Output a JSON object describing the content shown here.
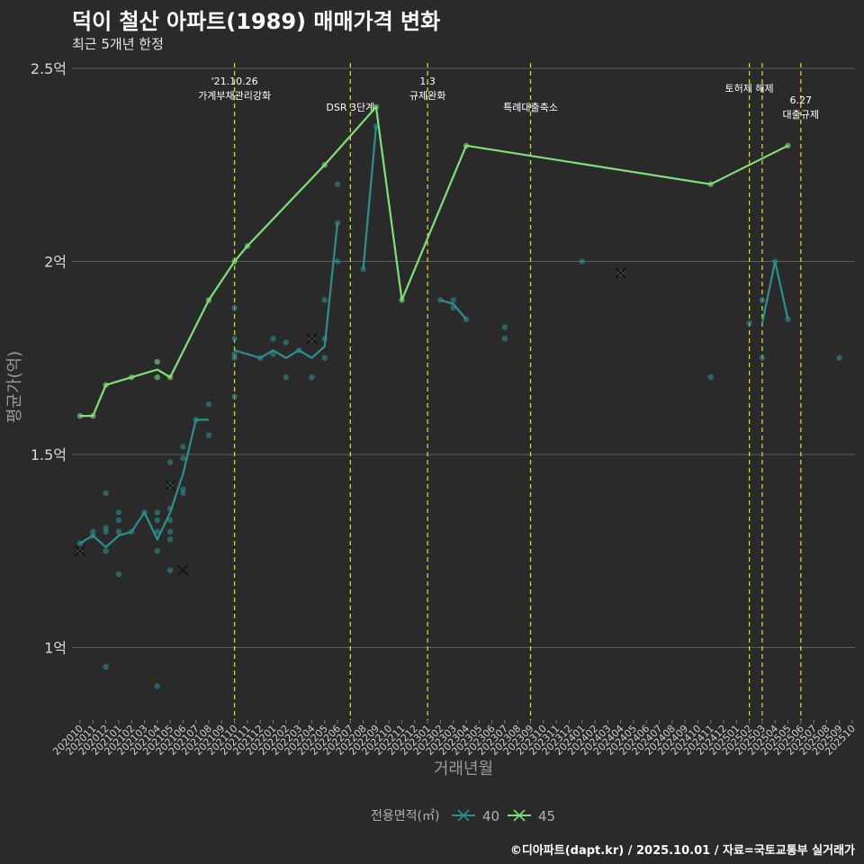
{
  "title": "덕이 철산 아파트(1989) 매매가격 변화",
  "subtitle": "최근 5개년 한정",
  "caption": "©디아파트(dapt.kr) / 2025.10.01 / 자료=국토교통부 실거래가",
  "colors": {
    "background": "#2b2a2b",
    "grid": "#5e5e5e",
    "vline": "#d6d62a",
    "s40": "#2d8e8e",
    "s45": "#7fe07a"
  },
  "chart_data": {
    "type": "line",
    "xlabel": "거래년월",
    "ylabel": "평균가(억)",
    "ylim": [
      0.82,
      2.53
    ],
    "y_ticks": [
      {
        "v": 1.0,
        "label": "1억"
      },
      {
        "v": 1.5,
        "label": "1.5억"
      },
      {
        "v": 2.0,
        "label": "2억"
      },
      {
        "v": 2.5,
        "label": "2.5억"
      }
    ],
    "x_categories": [
      "202010",
      "202011",
      "202012",
      "202101",
      "202102",
      "202103",
      "202104",
      "202105",
      "202106",
      "202107",
      "202108",
      "202109",
      "202110",
      "202111",
      "202112",
      "202201",
      "202202",
      "202203",
      "202204",
      "202205",
      "202206",
      "202207",
      "202208",
      "202209",
      "202210",
      "202211",
      "202212",
      "202301",
      "202302",
      "202303",
      "202304",
      "202305",
      "202306",
      "202307",
      "202308",
      "202309",
      "202310",
      "202311",
      "202312",
      "202401",
      "202402",
      "202403",
      "202404",
      "202405",
      "202406",
      "202407",
      "202408",
      "202409",
      "202410",
      "202411",
      "202412",
      "202501",
      "202502",
      "202503",
      "202504",
      "202505",
      "202506",
      "202507",
      "202508",
      "202509",
      "202510"
    ],
    "legend": {
      "title": "전용면적(㎡)",
      "position": "bottom",
      "items": [
        "40",
        "45"
      ]
    },
    "series": [
      {
        "name": "40",
        "color": "#2d8e8e",
        "line": [
          [
            [
              "202010",
              1.27
            ],
            [
              "202011",
              1.29
            ],
            [
              "202012",
              1.26
            ],
            [
              "202101",
              1.29
            ],
            [
              "202102",
              1.3
            ],
            [
              "202103",
              1.35
            ],
            [
              "202104",
              1.28
            ],
            [
              "202105",
              1.35
            ],
            [
              "202106",
              1.45
            ],
            [
              "202107",
              1.59
            ],
            [
              "202108",
              1.59
            ]
          ],
          [
            [
              "202110",
              1.77
            ],
            [
              "202111",
              1.76
            ],
            [
              "202112",
              1.75
            ],
            [
              "202201",
              1.77
            ],
            [
              "202202",
              1.75
            ],
            [
              "202203",
              1.77
            ],
            [
              "202204",
              1.75
            ],
            [
              "202205",
              1.78
            ],
            [
              "202206",
              2.1
            ]
          ],
          [
            [
              "202208",
              1.98
            ],
            [
              "202209",
              2.35
            ]
          ],
          [
            [
              "202302",
              1.9
            ],
            [
              "202303",
              1.89
            ],
            [
              "202304",
              1.85
            ]
          ],
          [
            [
              "202503",
              1.84
            ],
            [
              "202504",
              2.0
            ],
            [
              "202505",
              1.85
            ]
          ]
        ],
        "points": [
          [
            "202010",
            1.27
          ],
          [
            "202010",
            1.25
          ],
          [
            "202011",
            1.3
          ],
          [
            "202011",
            1.29
          ],
          [
            "202012",
            1.4
          ],
          [
            "202012",
            1.31
          ],
          [
            "202012",
            1.3
          ],
          [
            "202012",
            1.25
          ],
          [
            "202012",
            0.95
          ],
          [
            "202101",
            1.35
          ],
          [
            "202101",
            1.33
          ],
          [
            "202101",
            1.3
          ],
          [
            "202101",
            1.19
          ],
          [
            "202102",
            1.3
          ],
          [
            "202103",
            1.35
          ],
          [
            "202104",
            1.35
          ],
          [
            "202104",
            1.33
          ],
          [
            "202104",
            1.3
          ],
          [
            "202104",
            1.25
          ],
          [
            "202104",
            0.9
          ],
          [
            "202105",
            1.48
          ],
          [
            "202105",
            1.42
          ],
          [
            "202105",
            1.36
          ],
          [
            "202105",
            1.33
          ],
          [
            "202105",
            1.3
          ],
          [
            "202105",
            1.28
          ],
          [
            "202105",
            1.2
          ],
          [
            "202106",
            1.52
          ],
          [
            "202106",
            1.49
          ],
          [
            "202106",
            1.41
          ],
          [
            "202106",
            1.4
          ],
          [
            "202107",
            1.59
          ],
          [
            "202108",
            1.63
          ],
          [
            "202108",
            1.55
          ],
          [
            "202110",
            1.88
          ],
          [
            "202110",
            1.8
          ],
          [
            "202110",
            1.76
          ],
          [
            "202110",
            1.75
          ],
          [
            "202110",
            1.65
          ],
          [
            "202112",
            1.75
          ],
          [
            "202201",
            1.8
          ],
          [
            "202201",
            1.76
          ],
          [
            "202202",
            1.79
          ],
          [
            "202202",
            1.7
          ],
          [
            "202203",
            1.77
          ],
          [
            "202204",
            1.8
          ],
          [
            "202204",
            1.7
          ],
          [
            "202205",
            1.9
          ],
          [
            "202205",
            1.8
          ],
          [
            "202205",
            1.75
          ],
          [
            "202206",
            2.2
          ],
          [
            "202206",
            2.1
          ],
          [
            "202206",
            2.0
          ],
          [
            "202208",
            1.98
          ],
          [
            "202209",
            2.35
          ],
          [
            "202302",
            1.9
          ],
          [
            "202303",
            1.9
          ],
          [
            "202303",
            1.88
          ],
          [
            "202304",
            1.85
          ],
          [
            "202307",
            1.83
          ],
          [
            "202307",
            1.8
          ],
          [
            "202401",
            2.0
          ],
          [
            "202404",
            1.97
          ],
          [
            "202411",
            1.7
          ],
          [
            "202502",
            1.84
          ],
          [
            "202503",
            1.9
          ],
          [
            "202503",
            1.75
          ],
          [
            "202504",
            2.0
          ],
          [
            "202505",
            1.85
          ],
          [
            "202509",
            1.75
          ]
        ],
        "crosses": [
          [
            "202010",
            1.25
          ],
          [
            "202105",
            1.42
          ],
          [
            "202106",
            1.2
          ],
          [
            "202204",
            1.8
          ],
          [
            "202404",
            1.97
          ]
        ]
      },
      {
        "name": "45",
        "color": "#7fe07a",
        "line": [
          [
            [
              "202010",
              1.6
            ],
            [
              "202011",
              1.6
            ],
            [
              "202012",
              1.68
            ],
            [
              "202102",
              1.7
            ],
            [
              "202104",
              1.72
            ],
            [
              "202105",
              1.7
            ],
            [
              "202108",
              1.9
            ],
            [
              "202110",
              2.0
            ],
            [
              "202111",
              2.04
            ],
            [
              "202205",
              2.25
            ],
            [
              "202209",
              2.4
            ],
            [
              "202211",
              1.9
            ],
            [
              "202304",
              2.3
            ],
            [
              "202411",
              2.2
            ],
            [
              "202505",
              2.3
            ]
          ]
        ],
        "points": [
          [
            "202010",
            1.6
          ],
          [
            "202011",
            1.6
          ],
          [
            "202012",
            1.68
          ],
          [
            "202102",
            1.7
          ],
          [
            "202104",
            1.74
          ],
          [
            "202104",
            1.7
          ],
          [
            "202105",
            1.7
          ],
          [
            "202108",
            1.9
          ],
          [
            "202110",
            2.0
          ],
          [
            "202111",
            2.04
          ],
          [
            "202205",
            2.25
          ],
          [
            "202209",
            2.4
          ],
          [
            "202211",
            1.9
          ],
          [
            "202304",
            2.3
          ],
          [
            "202411",
            2.2
          ],
          [
            "202505",
            2.3
          ]
        ],
        "crosses": []
      }
    ],
    "annotations": [
      {
        "x": "202110",
        "lines": [
          "'21.10.26",
          "가계부채관리강화"
        ],
        "row": 0
      },
      {
        "x": "202207",
        "lines": [
          "DSR 3단계"
        ],
        "row": 1
      },
      {
        "x": "202301",
        "lines": [
          "1.3",
          "규제완화"
        ],
        "row": 0
      },
      {
        "x": "202309",
        "lines": [
          "특례대출축소"
        ],
        "row": 1
      },
      {
        "x": "202502",
        "lines": [
          "토허제 해제"
        ],
        "row": 0
      },
      {
        "x": "202503",
        "lines": [],
        "row": 0
      },
      {
        "x": "202506",
        "lines": [
          "6.27",
          "대출규제"
        ],
        "row": 1
      }
    ]
  }
}
